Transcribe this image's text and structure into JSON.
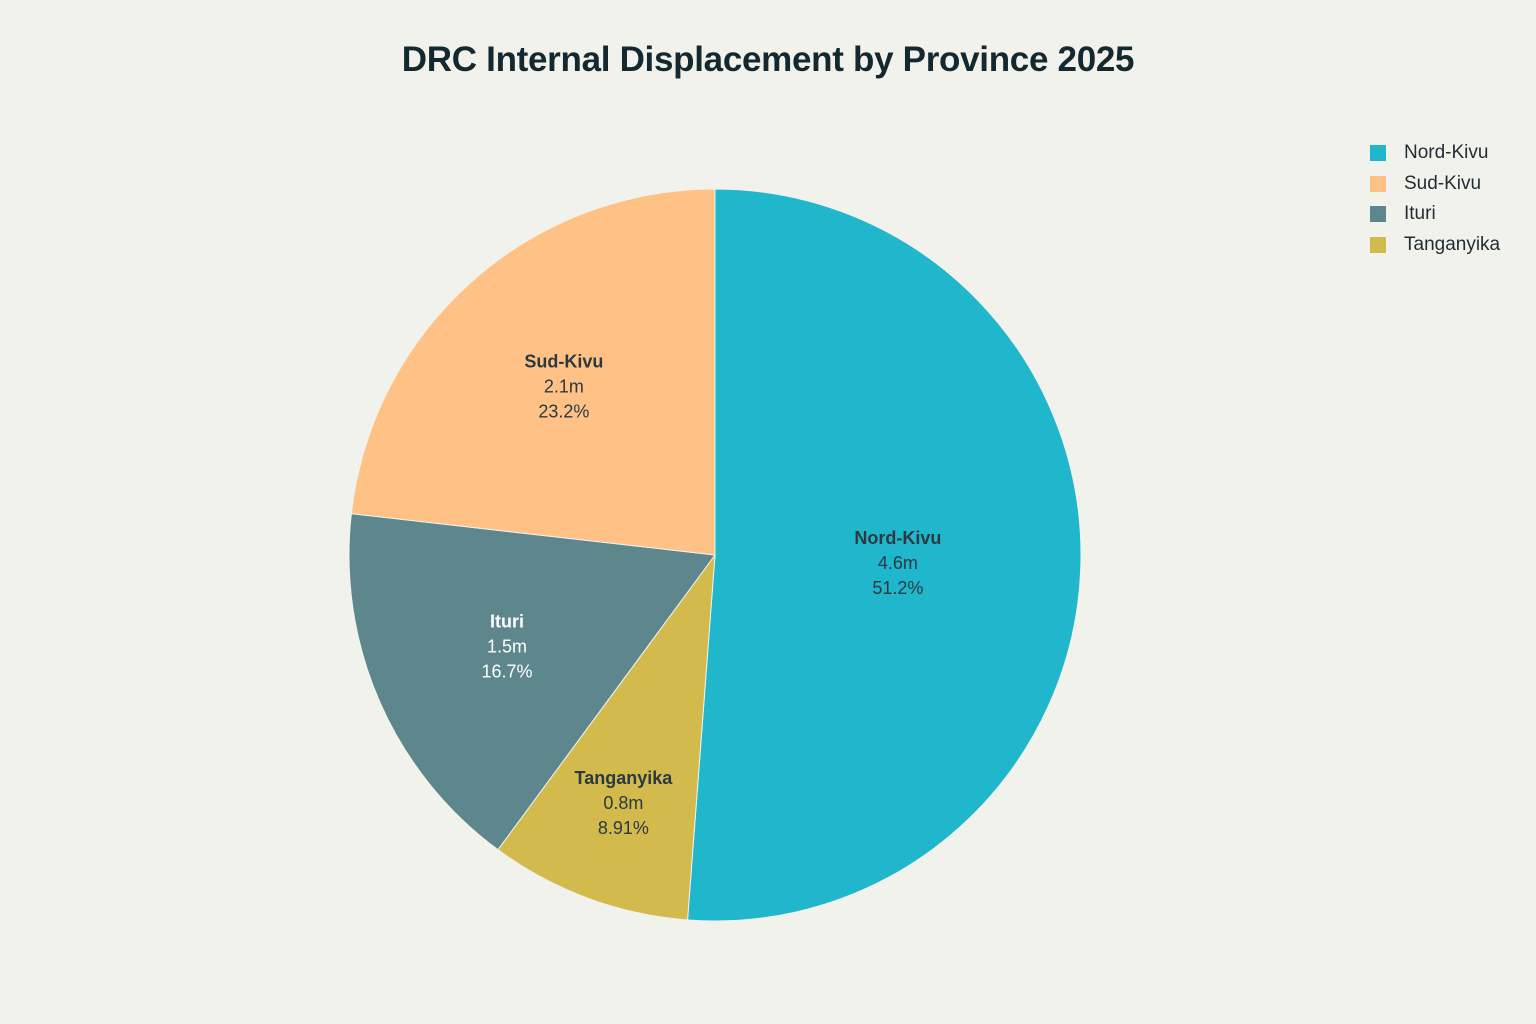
{
  "title": "DRC Internal Displacement by Province 2025",
  "legend": [
    {
      "label": "Nord-Kivu",
      "color": "#20b6cb"
    },
    {
      "label": "Sud-Kivu",
      "color": "#ffc185"
    },
    {
      "label": "Ituri",
      "color": "#5d868d"
    },
    {
      "label": "Tanganyika",
      "color": "#d2ba4c"
    }
  ],
  "slices": [
    {
      "name": "Nord-Kivu",
      "value_label": "4.6m",
      "pct_label": "51.2%",
      "color": "#20b6cb",
      "text_color": "#2b3a40"
    },
    {
      "name": "Tanganyika",
      "value_label": "0.8m",
      "pct_label": "8.91%",
      "color": "#d2ba4c",
      "text_color": "#2b3a40"
    },
    {
      "name": "Ituri",
      "value_label": "1.5m",
      "pct_label": "16.7%",
      "color": "#5d868d",
      "text_color": "#ffffff"
    },
    {
      "name": "Sud-Kivu",
      "value_label": "2.1m",
      "pct_label": "23.2%",
      "color": "#ffc185",
      "text_color": "#2b3a40"
    }
  ],
  "chart_data": {
    "type": "pie",
    "title": "DRC Internal Displacement by Province 2025",
    "categories": [
      "Nord-Kivu",
      "Sud-Kivu",
      "Ituri",
      "Tanganyika"
    ],
    "values": [
      4.6,
      2.1,
      1.5,
      0.8
    ],
    "unit": "million people",
    "percentages": [
      51.2,
      23.2,
      16.7,
      8.91
    ],
    "colors": [
      "#20b6cb",
      "#ffc185",
      "#5d868d",
      "#d2ba4c"
    ],
    "legend_position": "top-right",
    "direction": "clockwise",
    "start_angle": "12 o'clock"
  }
}
